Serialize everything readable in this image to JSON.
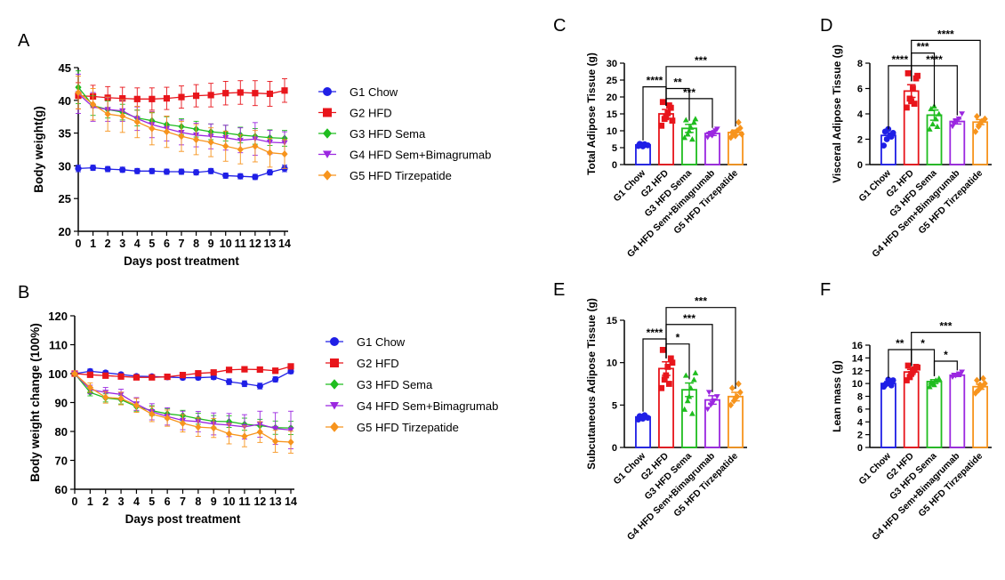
{
  "colors": {
    "G1": "#1f1fe6",
    "G2": "#e8151b",
    "G3": "#1fbd1f",
    "G4": "#9b27e0",
    "G5": "#f7941d"
  },
  "chart_data": [
    {
      "id": "A",
      "type": "line",
      "panel_label": "A",
      "xlabel": "Days post treatment",
      "ylabel": "Body weight(g)",
      "x": [
        0,
        1,
        2,
        3,
        4,
        5,
        6,
        7,
        8,
        9,
        10,
        11,
        12,
        13,
        14
      ],
      "xlim": [
        0,
        14
      ],
      "ylim": [
        20,
        45
      ],
      "yticks": [
        20,
        25,
        30,
        35,
        40,
        45
      ],
      "legend_position": "right",
      "series": [
        {
          "key": "G1",
          "name": "G1 Chow",
          "marker": "circle",
          "values": [
            29.6,
            29.7,
            29.5,
            29.4,
            29.2,
            29.2,
            29.1,
            29.1,
            29.0,
            29.2,
            28.5,
            28.4,
            28.3,
            29.0,
            29.6
          ],
          "err": [
            0.5,
            0.4,
            0.4,
            0.4,
            0.4,
            0.4,
            0.4,
            0.4,
            0.4,
            0.4,
            0.4,
            0.4,
            0.4,
            0.4,
            0.5
          ]
        },
        {
          "key": "G2",
          "name": "G2 HFD",
          "marker": "square",
          "values": [
            40.7,
            40.6,
            40.4,
            40.3,
            40.2,
            40.2,
            40.3,
            40.5,
            40.7,
            40.8,
            41.1,
            41.2,
            41.1,
            41.0,
            41.5
          ],
          "err": [
            2.0,
            1.7,
            1.7,
            1.7,
            1.7,
            1.7,
            1.7,
            1.7,
            1.7,
            1.8,
            1.8,
            1.8,
            1.9,
            1.9,
            1.8
          ]
        },
        {
          "key": "G3",
          "name": "G3 HFD Sema",
          "marker": "diamond",
          "values": [
            42.0,
            39.2,
            38.6,
            38.2,
            37.3,
            36.9,
            36.3,
            36.0,
            35.6,
            35.2,
            35.0,
            34.7,
            34.5,
            34.3,
            34.2
          ],
          "err": [
            2.5,
            1.5,
            1.3,
            1.2,
            1.2,
            1.2,
            1.2,
            1.2,
            1.2,
            1.2,
            1.2,
            1.2,
            1.2,
            1.2,
            1.2
          ]
        },
        {
          "key": "G4",
          "name": "G4 HFD Sem+Bimagrumab",
          "marker": "triangle-down",
          "values": [
            41.0,
            39.0,
            38.6,
            38.4,
            37.2,
            36.3,
            35.7,
            35.1,
            34.7,
            34.5,
            34.3,
            33.9,
            34.1,
            33.6,
            33.5
          ],
          "err": [
            3.0,
            2.2,
            1.8,
            1.6,
            1.8,
            2.0,
            1.9,
            1.9,
            1.8,
            1.9,
            1.9,
            1.9,
            2.5,
            1.8,
            1.7
          ]
        },
        {
          "key": "G5",
          "name": "G5 HFD Tirzepatide",
          "marker": "diamond",
          "values": [
            41.2,
            39.4,
            37.9,
            37.6,
            36.7,
            35.7,
            35.2,
            34.5,
            34.0,
            33.6,
            33.0,
            32.5,
            33.0,
            32.0,
            31.8
          ],
          "err": [
            2.5,
            2.4,
            2.6,
            2.5,
            2.4,
            2.5,
            2.4,
            2.3,
            2.3,
            2.2,
            2.3,
            2.2,
            2.4,
            2.2,
            2.2
          ]
        }
      ]
    },
    {
      "id": "B",
      "type": "line",
      "panel_label": "B",
      "xlabel": "Days post treatment",
      "ylabel": "Body weight change (100%)",
      "x": [
        0,
        1,
        2,
        3,
        4,
        5,
        6,
        7,
        8,
        9,
        10,
        11,
        12,
        13,
        14
      ],
      "xlim": [
        0,
        14
      ],
      "ylim": [
        60,
        120
      ],
      "yticks": [
        60,
        70,
        80,
        90,
        100,
        110,
        120
      ],
      "legend_position": "right",
      "series": [
        {
          "key": "G1",
          "name": "G1 Chow",
          "marker": "circle",
          "values": [
            100,
            100.8,
            100.3,
            99.7,
            99.1,
            99.0,
            98.8,
            98.6,
            98.6,
            98.8,
            97.2,
            96.5,
            95.7,
            98.0,
            100.8
          ],
          "err": [
            0.3,
            0.8,
            0.7,
            0.6,
            0.6,
            0.6,
            0.6,
            0.7,
            0.7,
            0.8,
            1.0,
            1.0,
            1.0,
            0.9,
            0.8
          ]
        },
        {
          "key": "G2",
          "name": "G2 HFD",
          "marker": "square",
          "values": [
            100,
            99.6,
            99.3,
            99.0,
            98.7,
            98.7,
            98.9,
            99.5,
            100.1,
            100.4,
            101.3,
            101.5,
            101.4,
            101.0,
            102.5
          ],
          "err": [
            0.3,
            0.5,
            0.5,
            0.5,
            0.5,
            0.6,
            0.6,
            0.6,
            0.7,
            0.7,
            0.8,
            0.8,
            0.8,
            0.9,
            0.9
          ]
        },
        {
          "key": "G3",
          "name": "G3 HFD Sema",
          "marker": "diamond",
          "values": [
            100,
            93.5,
            91.6,
            91.0,
            88.6,
            87.2,
            86.1,
            85.5,
            84.4,
            83.5,
            83.4,
            82.5,
            82.0,
            81.3,
            81.2
          ],
          "err": [
            0.3,
            1.2,
            1.4,
            1.5,
            1.6,
            1.7,
            1.8,
            1.8,
            1.9,
            2.0,
            2.0,
            2.1,
            2.2,
            2.3,
            2.3
          ]
        },
        {
          "key": "G4",
          "name": "G4 HFD Sem+Bimagrumab",
          "marker": "triangle-down",
          "values": [
            100,
            94.5,
            93.5,
            92.8,
            89.5,
            86.8,
            85.2,
            83.8,
            83.4,
            82.6,
            82.2,
            81.6,
            82.5,
            81.0,
            80.5
          ],
          "err": [
            0.3,
            1.5,
            1.7,
            1.8,
            2.2,
            2.8,
            3.0,
            3.2,
            3.5,
            3.8,
            4.0,
            4.2,
            4.5,
            5.5,
            6.5
          ]
        },
        {
          "key": "G5",
          "name": "G5 HFD Tirzepatide",
          "marker": "diamond",
          "values": [
            100,
            95.2,
            91.8,
            91.4,
            89.0,
            86.0,
            84.6,
            82.8,
            81.5,
            81.2,
            79.2,
            78.3,
            79.8,
            76.6,
            76.3
          ],
          "err": [
            0.3,
            1.6,
            2.0,
            2.2,
            2.4,
            2.6,
            2.8,
            3.0,
            3.2,
            3.3,
            3.5,
            3.6,
            3.6,
            3.8,
            3.8
          ]
        }
      ]
    },
    {
      "id": "C",
      "type": "bar",
      "panel_label": "C",
      "ylabel": "Total Adipose Tissue (g)",
      "ylim": [
        0,
        30
      ],
      "yticks": [
        0,
        5,
        10,
        15,
        20,
        25,
        30
      ],
      "categories": [
        "G1 Chow",
        "G2 HFD",
        "G3 HFD Sema",
        "G4 HFD Sem+Bimagrumab",
        "G5 HFD Tirzepatide"
      ],
      "values": [
        5.8,
        15.0,
        10.7,
        9.2,
        9.5
      ],
      "sem": [
        0.3,
        1.3,
        1.2,
        0.6,
        0.7
      ],
      "points": [
        [
          5.5,
          5.9,
          6.0,
          5.7,
          6.1,
          5.4
        ],
        [
          11.5,
          13.5,
          15.2,
          16.8,
          18.5,
          14.0,
          17.5,
          13.0
        ],
        [
          8.0,
          9.0,
          11.0,
          12.5,
          13.2,
          10.0,
          7.5,
          13.5
        ],
        [
          8.0,
          8.8,
          9.5,
          10.5,
          9.0,
          8.5,
          10.0
        ],
        [
          8.0,
          9.0,
          10.0,
          10.8,
          9.5,
          8.5,
          12.5,
          9.0
        ]
      ],
      "significance": [
        {
          "from": 0,
          "to": 1,
          "text": "****",
          "y": 23
        },
        {
          "from": 1,
          "to": 2,
          "text": "**",
          "y": 22.5
        },
        {
          "from": 1,
          "to": 3,
          "text": "***",
          "y": 19.5
        },
        {
          "from": 1,
          "to": 4,
          "text": "***",
          "y": 29
        }
      ]
    },
    {
      "id": "D",
      "type": "bar",
      "panel_label": "D",
      "ylabel": "Visceral Adipose Tissue (g)",
      "ylim": [
        0,
        8
      ],
      "yticks": [
        0,
        2,
        4,
        6,
        8
      ],
      "categories": [
        "G1 Chow",
        "G2 HFD",
        "G3 HFD Sema",
        "G4 HFD Sem+Bimagrumab",
        "G5 HFD Tirzepatide"
      ],
      "values": [
        2.3,
        5.8,
        3.9,
        3.4,
        3.35
      ],
      "sem": [
        0.2,
        0.5,
        0.4,
        0.2,
        0.2
      ],
      "points": [
        [
          1.5,
          2.0,
          2.3,
          2.5,
          2.6,
          2.8,
          2.2
        ],
        [
          4.5,
          5.2,
          6.0,
          6.8,
          7.2,
          5.0,
          4.8,
          7.0
        ],
        [
          2.8,
          3.2,
          3.6,
          4.0,
          4.4,
          4.6,
          3.0
        ],
        [
          3.0,
          3.4,
          3.6,
          4.0,
          3.2
        ],
        [
          2.6,
          3.0,
          3.4,
          3.6,
          3.8,
          3.2
        ]
      ],
      "significance": [
        {
          "from": 0,
          "to": 1,
          "text": "****",
          "y": 7.8
        },
        {
          "from": 1,
          "to": 2,
          "text": "***",
          "y": 8.8
        },
        {
          "from": 1,
          "to": 3,
          "text": "****",
          "y": 7.8
        },
        {
          "from": 1,
          "to": 4,
          "text": "****",
          "y": 9.8
        }
      ]
    },
    {
      "id": "E",
      "type": "bar",
      "panel_label": "E",
      "ylabel": "Subcutaneous Adipose Tissue (g)",
      "ylim": [
        0,
        15
      ],
      "yticks": [
        0,
        5,
        10,
        15
      ],
      "categories": [
        "G1 Chow",
        "G2 HFD",
        "G3 HFD Sema",
        "G4 HFD Sem+Bimagrumab",
        "G5 HFD Tirzepatide"
      ],
      "values": [
        3.6,
        9.3,
        6.8,
        5.6,
        6.0
      ],
      "sem": [
        0.2,
        0.8,
        0.8,
        0.5,
        0.5
      ],
      "points": [
        [
          3.3,
          3.6,
          3.8,
          3.5,
          3.7,
          3.4
        ],
        [
          7.0,
          8.0,
          9.5,
          10.5,
          11.5,
          8.5,
          7.5,
          10.0
        ],
        [
          4.5,
          5.5,
          7.0,
          8.0,
          8.5,
          6.0,
          4.0,
          8.8
        ],
        [
          4.5,
          5.0,
          5.5,
          6.0,
          6.5,
          5.2
        ],
        [
          5.0,
          5.5,
          6.0,
          6.5,
          7.0,
          5.8,
          7.5
        ]
      ],
      "significance": [
        {
          "from": 0,
          "to": 1,
          "text": "****",
          "y": 12.8
        },
        {
          "from": 1,
          "to": 2,
          "text": "*",
          "y": 12.2
        },
        {
          "from": 1,
          "to": 3,
          "text": "***",
          "y": 14.5
        },
        {
          "from": 1,
          "to": 4,
          "text": "***",
          "y": 16.5
        }
      ]
    },
    {
      "id": "F",
      "type": "bar",
      "panel_label": "F",
      "ylabel": "Lean mass (g)",
      "ylim": [
        0,
        16
      ],
      "yticks": [
        0,
        2,
        4,
        6,
        8,
        10,
        12,
        14,
        16
      ],
      "categories": [
        "G1 Chow",
        "G2 HFD",
        "G3 HFD Sema",
        "G4 HFD Sem+Bimagrumab",
        "G5 HFD Tirzepatide"
      ],
      "values": [
        10.0,
        11.8,
        10.3,
        11.3,
        9.5
      ],
      "sem": [
        0.3,
        0.4,
        0.3,
        0.2,
        0.4
      ],
      "points": [
        [
          9.5,
          10.0,
          10.3,
          10.5,
          9.8,
          10.6,
          9.7
        ],
        [
          10.5,
          11.0,
          12.0,
          12.6,
          12.8,
          11.5,
          12.2,
          12.5
        ],
        [
          9.5,
          10.0,
          10.5,
          10.8,
          10.2,
          9.8
        ],
        [
          11.0,
          11.2,
          11.5,
          11.8,
          11.3
        ],
        [
          8.5,
          9.0,
          9.5,
          10.0,
          10.5,
          9.8,
          10.8
        ]
      ],
      "significance": [
        {
          "from": 0,
          "to": 1,
          "text": "**",
          "y": 15.3
        },
        {
          "from": 1,
          "to": 2,
          "text": "*",
          "y": 15.3
        },
        {
          "from": 2,
          "to": 3,
          "text": "*",
          "y": 13.5
        },
        {
          "from": 1,
          "to": 4,
          "text": "***",
          "y": 18
        }
      ]
    }
  ]
}
